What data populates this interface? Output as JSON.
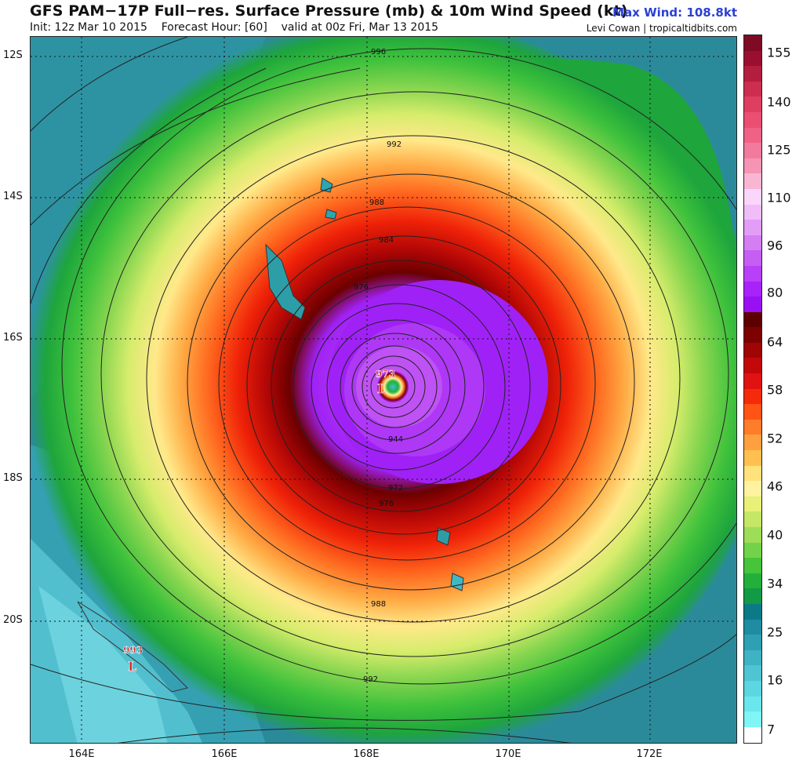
{
  "header": {
    "title": "GFS PAM−17P Full−res. Surface Pressure (mb) & 10m Wind Speed (kt)",
    "max_wind": "Max Wind: 108.8kt",
    "subtitle": "Init: 12z Mar 10 2015    Forecast Hour: [60]    valid at 00z Fri, Mar 13 2015",
    "credit": "Levi Cowan | tropicaltidbits.com"
  },
  "map": {
    "lat_labels": [
      "12S",
      "14S",
      "16S",
      "18S",
      "20S"
    ],
    "lon_labels": [
      "164E",
      "166E",
      "168E",
      "170E",
      "172E"
    ],
    "isobar_labels": [
      "996",
      "992",
      "988",
      "984",
      "976",
      "944",
      "972",
      "976",
      "988",
      "992"
    ],
    "center_low_value": "973",
    "center_low_letter": "L",
    "secondary_low_value": "993",
    "secondary_low_letter": "L"
  },
  "colorbar": {
    "labels": [
      "155",
      "140",
      "125",
      "110",
      "96",
      "80",
      "64",
      "58",
      "52",
      "46",
      "40",
      "34",
      "25",
      "16",
      "7"
    ],
    "bins": [
      "#ffffff",
      "#7ff5f5",
      "#6ae6ec",
      "#5cd6e0",
      "#4fc4d3",
      "#3fb2c4",
      "#2f9fb3",
      "#1f8ca2",
      "#0b7a86",
      "#139a46",
      "#22b03a",
      "#46c43a",
      "#72d34a",
      "#9edd57",
      "#c5e766",
      "#e8f077",
      "#fff2a0",
      "#ffe27a",
      "#ffc050",
      "#ffa040",
      "#ff7d2a",
      "#ff5416",
      "#f52a0a",
      "#e11212",
      "#c3080a",
      "#a00404",
      "#7c0202",
      "#5e0000",
      "#9a10f4",
      "#a822fa",
      "#b93ff8",
      "#c65ef4",
      "#d47ef4",
      "#e29df6",
      "#f0bdf8",
      "#fbd6fb",
      "#f9b6d2",
      "#f694b4",
      "#f27a9e",
      "#ef6286",
      "#ea4e72",
      "#de3e60",
      "#cd2e4f",
      "#b41e3e",
      "#9a0e30",
      "#7f0a24"
    ],
    "ticks": [
      {
        "label": "155",
        "v": 155
      },
      {
        "label": "140",
        "v": 140
      },
      {
        "label": "125",
        "v": 125
      },
      {
        "label": "110",
        "v": 110
      },
      {
        "label": "96",
        "v": 96
      },
      {
        "label": "80",
        "v": 80
      },
      {
        "label": "64",
        "v": 64
      },
      {
        "label": "58",
        "v": 58
      },
      {
        "label": "52",
        "v": 52
      },
      {
        "label": "46",
        "v": 46
      },
      {
        "label": "40",
        "v": 40
      },
      {
        "label": "34",
        "v": 34
      },
      {
        "label": "25",
        "v": 25
      },
      {
        "label": "16",
        "v": 16
      },
      {
        "label": "7",
        "v": 7
      }
    ]
  },
  "colors": {
    "ocean_calm": "#2d8f9e",
    "ocean_light": "#56c9d8",
    "green_band": "#22ae3c",
    "red_band": "#e0150f",
    "purple_core": "#a021f5"
  }
}
